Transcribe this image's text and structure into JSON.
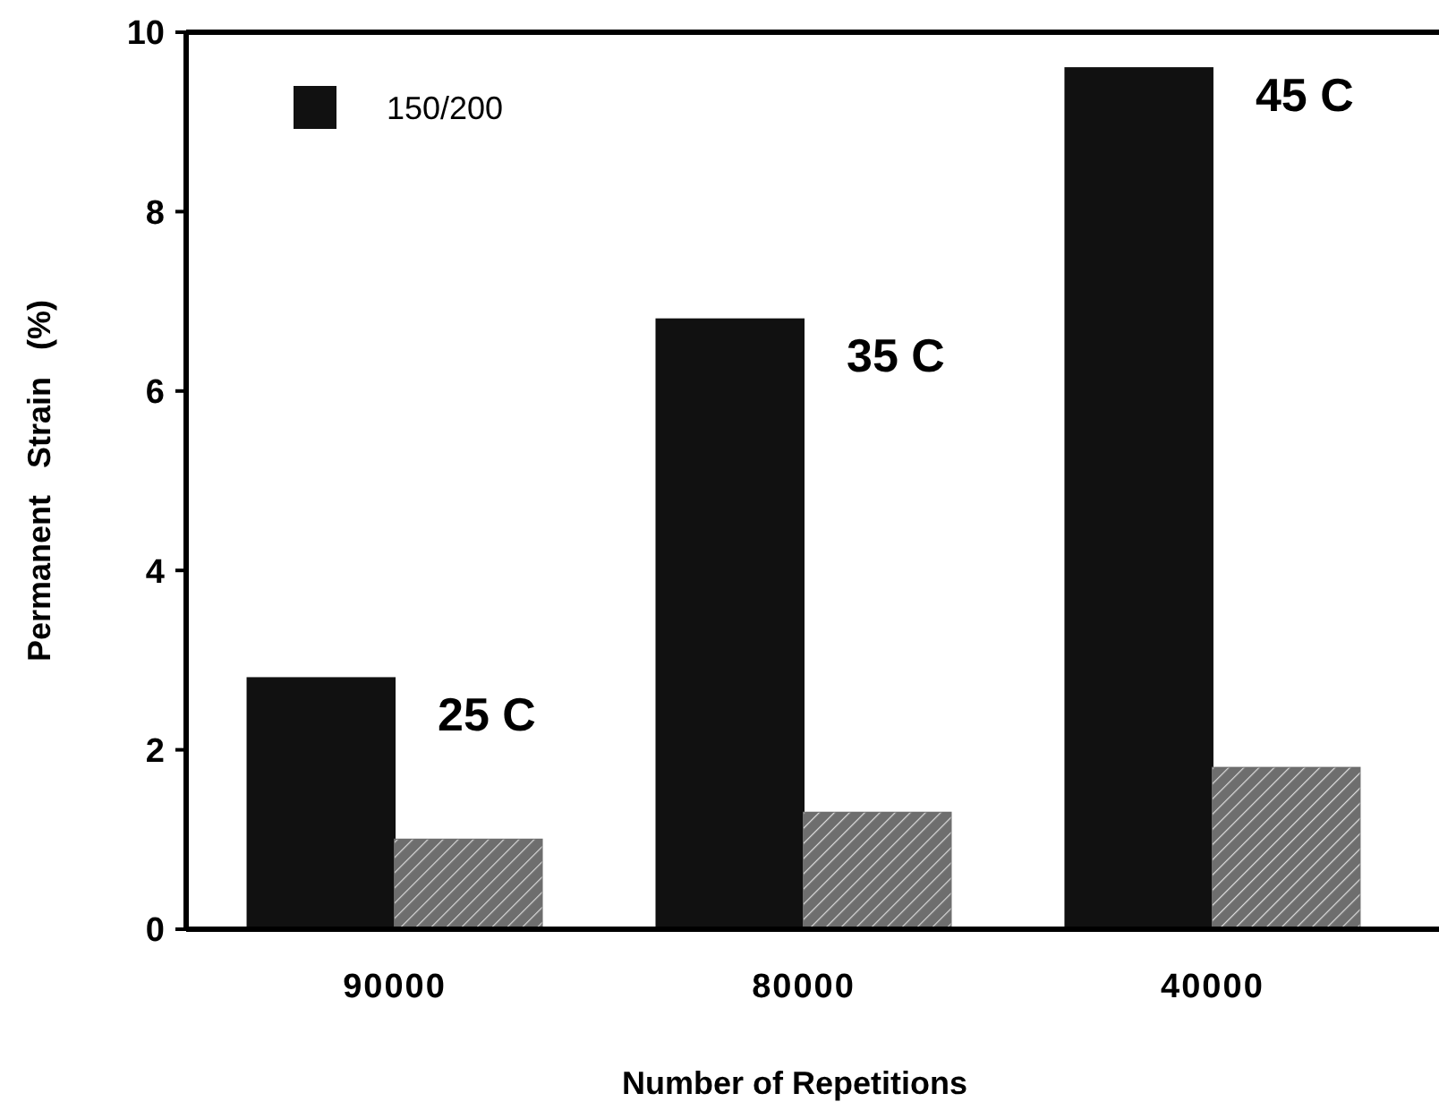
{
  "chart_data": {
    "type": "bar",
    "xlabel": "Number of Repetitions",
    "ylabel": "Permanent   Strain   (%)",
    "categories": [
      "90000",
      "80000",
      "40000"
    ],
    "series": [
      {
        "name": "150/200",
        "color": "#111111",
        "values": [
          2.8,
          6.8,
          9.6
        ]
      },
      {
        "color": "#6e6e6e",
        "values": [
          1.0,
          1.3,
          1.8
        ]
      }
    ],
    "ylim": [
      0,
      10
    ],
    "yticks": [
      0,
      2,
      4,
      6,
      8,
      10
    ],
    "grid": false,
    "legend": "top left",
    "annotations": [
      {
        "text": "25 C",
        "x": "90000",
        "y": 2.4
      },
      {
        "text": "35 C",
        "x": "80000",
        "y": 6.4
      },
      {
        "text": "45 C",
        "x": "40000",
        "y": 9.3
      }
    ]
  }
}
